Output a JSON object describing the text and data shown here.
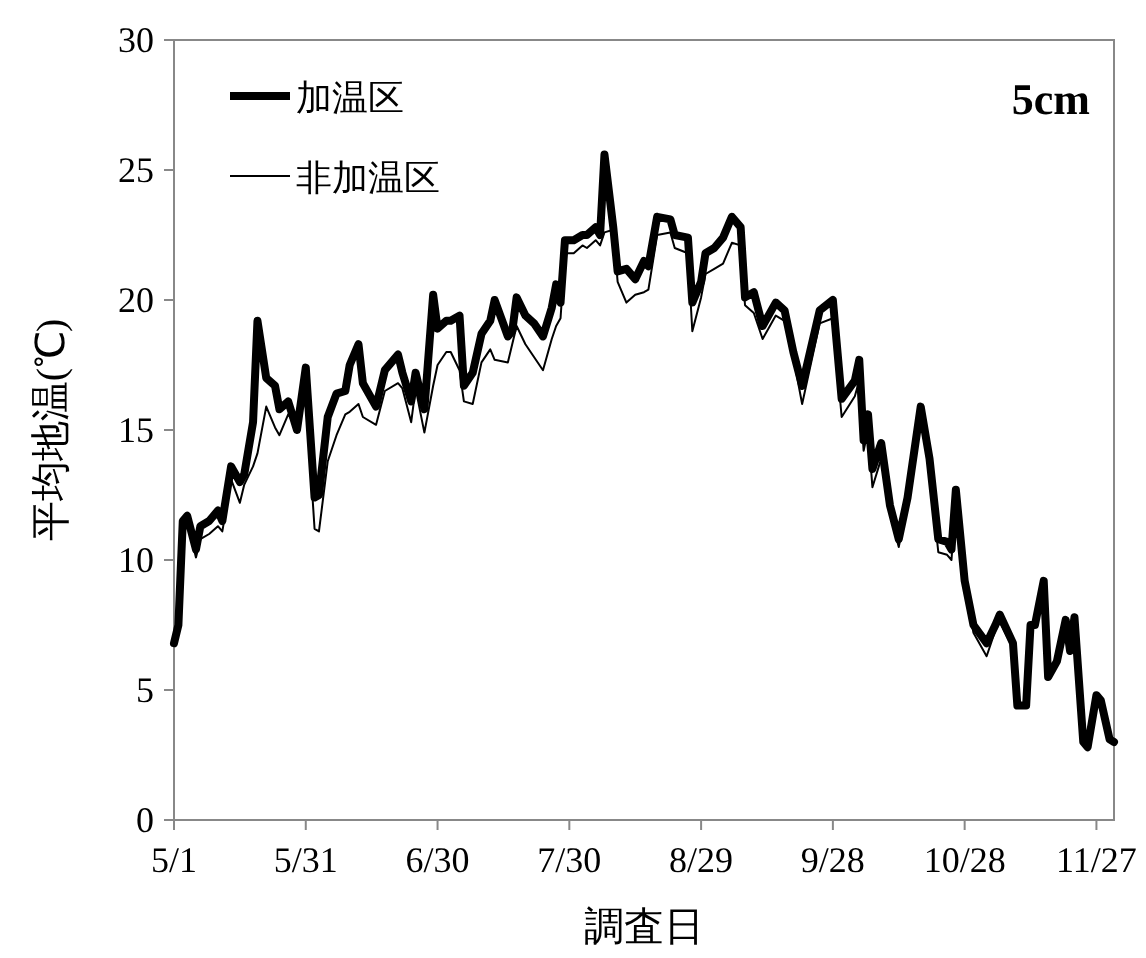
{
  "chart_data": {
    "type": "line",
    "xlabel": "調査日",
    "ylabel": "平均地温(℃)",
    "annotations": [
      "5cm"
    ],
    "legend": "top left",
    "marker": "none",
    "line_style": "solid",
    "grid": false,
    "ylim": [
      0,
      30
    ],
    "yticks": [
      0,
      5,
      10,
      15,
      20,
      25,
      30
    ],
    "xlim": [
      "--05-01",
      "--12-01"
    ],
    "xticks": [
      {
        "value": "--05-01",
        "label": "5/1"
      },
      {
        "value": "--05-31",
        "label": "5/31"
      },
      {
        "value": "--06-30",
        "label": "6/30"
      },
      {
        "value": "--07-30",
        "label": "7/30"
      },
      {
        "value": "--08-29",
        "label": "8/29"
      },
      {
        "value": "--09-28",
        "label": "9/28"
      },
      {
        "value": "--10-28",
        "label": "10/28"
      },
      {
        "value": "--11-27",
        "label": "11/27"
      }
    ],
    "x": [
      "--05-01",
      "--05-02",
      "--05-03",
      "--05-04",
      "--05-06",
      "--05-07",
      "--05-09",
      "--05-11",
      "--05-12",
      "--05-14",
      "--05-16",
      "--05-17",
      "--05-19",
      "--05-20",
      "--05-22",
      "--05-24",
      "--05-25",
      "--05-27",
      "--05-29",
      "--05-31",
      "--06-02",
      "--06-03",
      "--06-05",
      "--06-07",
      "--06-09",
      "--06-10",
      "--06-12",
      "--06-13",
      "--06-16",
      "--06-18",
      "--06-21",
      "--06-22",
      "--06-24",
      "--06-25",
      "--06-27",
      "--06-29",
      "--06-30",
      "--07-02",
      "--07-03",
      "--07-05",
      "--07-06",
      "--07-08",
      "--07-10",
      "--07-12",
      "--07-13",
      "--07-16",
      "--07-17",
      "--07-18",
      "--07-20",
      "--07-22",
      "--07-24",
      "--07-26",
      "--07-27",
      "--07-28",
      "--07-29",
      "--07-31",
      "--08-02",
      "--08-03",
      "--08-05",
      "--08-06",
      "--08-07",
      "--08-09",
      "--08-10",
      "--08-12",
      "--08-14",
      "--08-16",
      "--08-17",
      "--08-19",
      "--08-22",
      "--08-23",
      "--08-26",
      "--08-27",
      "--08-29",
      "--08-30",
      "--09-01",
      "--09-03",
      "--09-05",
      "--09-07",
      "--09-08",
      "--09-10",
      "--09-12",
      "--09-15",
      "--09-17",
      "--09-19",
      "--09-21",
      "--09-25",
      "--09-28",
      "--09-30",
      "--10-03",
      "--10-04",
      "--10-05",
      "--10-06",
      "--10-07",
      "--10-09",
      "--10-11",
      "--10-13",
      "--10-15",
      "--10-18",
      "--10-20",
      "--10-22",
      "--10-24",
      "--10-25",
      "--10-26",
      "--10-28",
      "--10-30",
      "--11-02",
      "--11-04",
      "--11-05",
      "--11-08",
      "--11-09",
      "--11-11",
      "--11-12",
      "--11-13",
      "--11-15",
      "--11-16",
      "--11-18",
      "--11-20",
      "--11-21",
      "--11-22",
      "--11-24",
      "--11-25",
      "--11-27",
      "--11-28",
      "--11-30",
      "--12-01"
    ],
    "series": [
      {
        "name": "加温区",
        "color": "#000000",
        "values": [
          6.8,
          7.5,
          11.5,
          11.7,
          10.4,
          11.3,
          11.5,
          11.9,
          11.5,
          13.6,
          13.0,
          13.3,
          15.3,
          19.2,
          17.0,
          16.7,
          15.8,
          16.1,
          15.0,
          17.4,
          12.4,
          12.5,
          15.5,
          16.4,
          16.5,
          17.5,
          18.3,
          16.8,
          15.9,
          17.3,
          17.9,
          17.2,
          16.1,
          17.2,
          15.8,
          20.2,
          18.9,
          19.2,
          19.2,
          19.4,
          16.7,
          17.2,
          18.7,
          19.2,
          20.0,
          18.6,
          18.8,
          20.1,
          19.4,
          19.1,
          18.6,
          19.7,
          20.6,
          19.9,
          22.3,
          22.3,
          22.5,
          22.5,
          22.8,
          22.5,
          25.6,
          22.8,
          21.1,
          21.2,
          20.8,
          21.5,
          21.3,
          23.2,
          23.1,
          22.5,
          22.4,
          19.9,
          20.7,
          21.8,
          22.0,
          22.4,
          23.2,
          22.8,
          20.1,
          20.3,
          19.0,
          19.9,
          19.6,
          18.0,
          16.7,
          19.6,
          20.0,
          16.2,
          16.9,
          17.7,
          14.6,
          15.6,
          13.5,
          14.5,
          12.1,
          10.8,
          12.4,
          15.9,
          13.9,
          10.8,
          10.7,
          10.4,
          12.7,
          9.2,
          7.5,
          6.8,
          7.5,
          7.9,
          6.8,
          4.4,
          4.4,
          7.5,
          7.5,
          9.2,
          5.5,
          6.1,
          7.7,
          6.5,
          7.8,
          3.0,
          2.8,
          4.8,
          4.6,
          3.1,
          3.0
        ]
      },
      {
        "name": "非加温区",
        "color": "#000000",
        "values": [
          6.8,
          7.3,
          11.3,
          11.5,
          10.1,
          10.8,
          11.0,
          11.3,
          11.1,
          13.1,
          12.2,
          12.9,
          13.6,
          14.1,
          15.9,
          15.1,
          14.8,
          15.6,
          15.1,
          16.4,
          11.2,
          11.1,
          13.8,
          14.8,
          15.6,
          15.7,
          16.0,
          15.5,
          15.2,
          16.5,
          16.8,
          16.6,
          15.3,
          16.6,
          14.9,
          16.7,
          17.5,
          18.0,
          18.0,
          17.3,
          16.1,
          16.0,
          17.6,
          18.1,
          17.7,
          17.6,
          18.3,
          19.0,
          18.3,
          17.8,
          17.3,
          18.5,
          19.0,
          19.3,
          21.8,
          21.8,
          22.1,
          22.0,
          22.3,
          22.1,
          22.6,
          22.7,
          20.7,
          19.9,
          20.2,
          20.3,
          20.4,
          22.5,
          22.6,
          22.0,
          21.8,
          18.8,
          20.1,
          21.0,
          21.2,
          21.4,
          22.2,
          22.1,
          19.8,
          19.5,
          18.5,
          19.4,
          19.2,
          17.8,
          16.0,
          19.1,
          19.3,
          15.5,
          16.3,
          16.9,
          14.2,
          15.0,
          12.8,
          13.9,
          11.8,
          10.5,
          12.2,
          15.6,
          13.5,
          10.3,
          10.2,
          10.0,
          12.4,
          9.0,
          7.2,
          6.3,
          7.3,
          7.6,
          6.6,
          4.4,
          4.4,
          7.4,
          7.4,
          9.0,
          5.5,
          6.0,
          7.5,
          6.4,
          7.6,
          2.9,
          2.7,
          4.7,
          4.5,
          3.0,
          3.0
        ]
      }
    ]
  }
}
